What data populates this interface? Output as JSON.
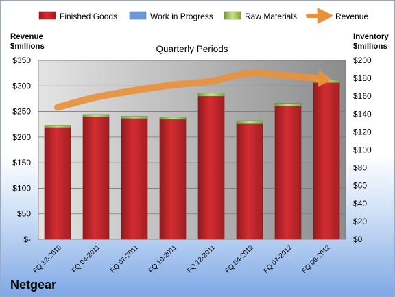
{
  "company": "Netgear",
  "chart_data": {
    "type": "bar",
    "title": "Quarterly Periods",
    "categories": [
      "FQ 12-2010",
      "FQ 04-2011",
      "FQ 07-2011",
      "FQ 10-2011",
      "FQ 12-2011",
      "FQ 04-2012",
      "FQ 07-2012",
      "FQ 09-2012"
    ],
    "series": [
      {
        "name": "Finished Goods",
        "axis": "right",
        "stacked": true,
        "color": "#c0262b",
        "values": [
          125,
          137,
          135,
          134,
          160,
          129,
          149,
          175
        ]
      },
      {
        "name": "Work in Progress",
        "axis": "right",
        "stacked": true,
        "color": "#5b86c9",
        "values": [
          0,
          0,
          0,
          0,
          0,
          0,
          0,
          0
        ]
      },
      {
        "name": "Raw Materials",
        "axis": "right",
        "stacked": true,
        "color": "#9bbb59",
        "values": [
          2.5,
          2.5,
          2.5,
          2.5,
          3.5,
          3.5,
          3,
          3
        ]
      },
      {
        "name": "Revenue",
        "axis": "left",
        "type": "line",
        "color": "#e8913c",
        "values": [
          258,
          278,
          291,
          302,
          309,
          325,
          320,
          313
        ]
      }
    ],
    "ylabel_left": "Revenue $millions",
    "ylabel_right": "Inventory $millions",
    "ylim_left": [
      0,
      350
    ],
    "ylim_right": [
      0,
      200
    ],
    "yticks_left": [
      "$-",
      "$50",
      "$100",
      "$150",
      "$200",
      "$250",
      "$300",
      "$350"
    ],
    "yticks_right": [
      "$0",
      "$20",
      "$40",
      "$60",
      "$80",
      "$100",
      "$120",
      "$140",
      "$160",
      "$180",
      "$200"
    ],
    "grid": true,
    "legend_position": "top"
  }
}
